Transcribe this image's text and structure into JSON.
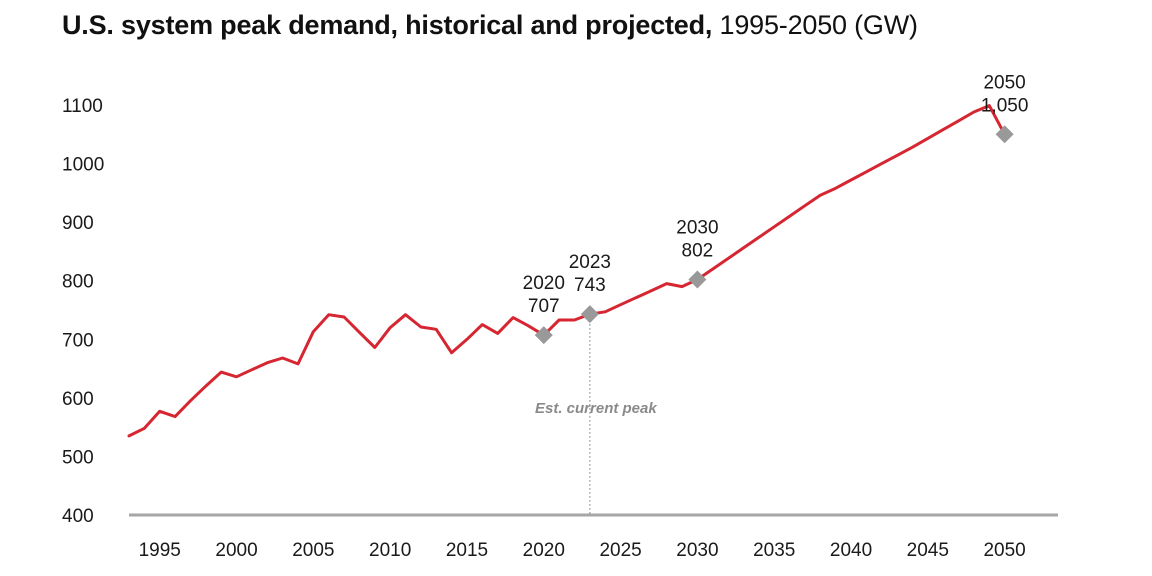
{
  "chart_data": {
    "type": "line",
    "title_bold": "U.S. system peak demand, historical and projected,",
    "title_rest": " 1995-2050 (GW)",
    "xlabel": "",
    "ylabel": "",
    "xlim": [
      1993,
      2051
    ],
    "ylim": [
      400,
      1150
    ],
    "grid": false,
    "yticks": [
      400,
      500,
      600,
      700,
      800,
      900,
      1000,
      1100
    ],
    "ytick_labels": [
      "400",
      "500",
      "600",
      "700",
      "800",
      "900",
      "1000",
      "1100"
    ],
    "xticks": [
      1995,
      2000,
      2005,
      2010,
      2015,
      2020,
      2025,
      2030,
      2035,
      2040,
      2045,
      2050
    ],
    "xtick_labels": [
      "1995",
      "2000",
      "2005",
      "2010",
      "2015",
      "2020",
      "2025",
      "2030",
      "2035",
      "2040",
      "2045",
      "2050"
    ],
    "series": [
      {
        "name": "U.S. system peak demand",
        "color": "#d62631",
        "x": [
          1993,
          1994,
          1995,
          1996,
          1997,
          1998,
          1999,
          2000,
          2001,
          2002,
          2003,
          2004,
          2005,
          2006,
          2007,
          2008,
          2009,
          2010,
          2011,
          2012,
          2013,
          2014,
          2015,
          2016,
          2017,
          2018,
          2019,
          2020,
          2021,
          2022,
          2023,
          2024,
          2025,
          2026,
          2027,
          2028,
          2029,
          2030,
          2031,
          2032,
          2033,
          2034,
          2035,
          2036,
          2037,
          2038,
          2039,
          2040,
          2041,
          2042,
          2043,
          2044,
          2045,
          2046,
          2047,
          2048,
          2049,
          2050
        ],
        "values": [
          535,
          548,
          577,
          568,
          595,
          620,
          644,
          636,
          648,
          660,
          668,
          658,
          713,
          742,
          738,
          712,
          686,
          720,
          742,
          721,
          717,
          677,
          700,
          725,
          710,
          737,
          723,
          707,
          733,
          733,
          743,
          747,
          759,
          771,
          783,
          795,
          790,
          802,
          820,
          838,
          856,
          874,
          892,
          910,
          928,
          946,
          958,
          972,
          986,
          1000,
          1014,
          1028,
          1043,
          1058,
          1073,
          1088,
          1099,
          1050
        ]
      }
    ],
    "highlighted_points": [
      {
        "x": 2020,
        "y": 707,
        "year_label": "2020",
        "value_label": "707"
      },
      {
        "x": 2023,
        "y": 743,
        "year_label": "2023",
        "value_label": "743"
      },
      {
        "x": 2030,
        "y": 802,
        "year_label": "2030",
        "value_label": "802"
      },
      {
        "x": 2050,
        "y": 1050,
        "year_label": "2050",
        "value_label": "1,050"
      }
    ],
    "reference_line": {
      "x": 2023,
      "label": "Est. current peak",
      "color": "#8a8a8a"
    },
    "marker_color": "#999999",
    "axis_color": "#a6a6a6"
  }
}
